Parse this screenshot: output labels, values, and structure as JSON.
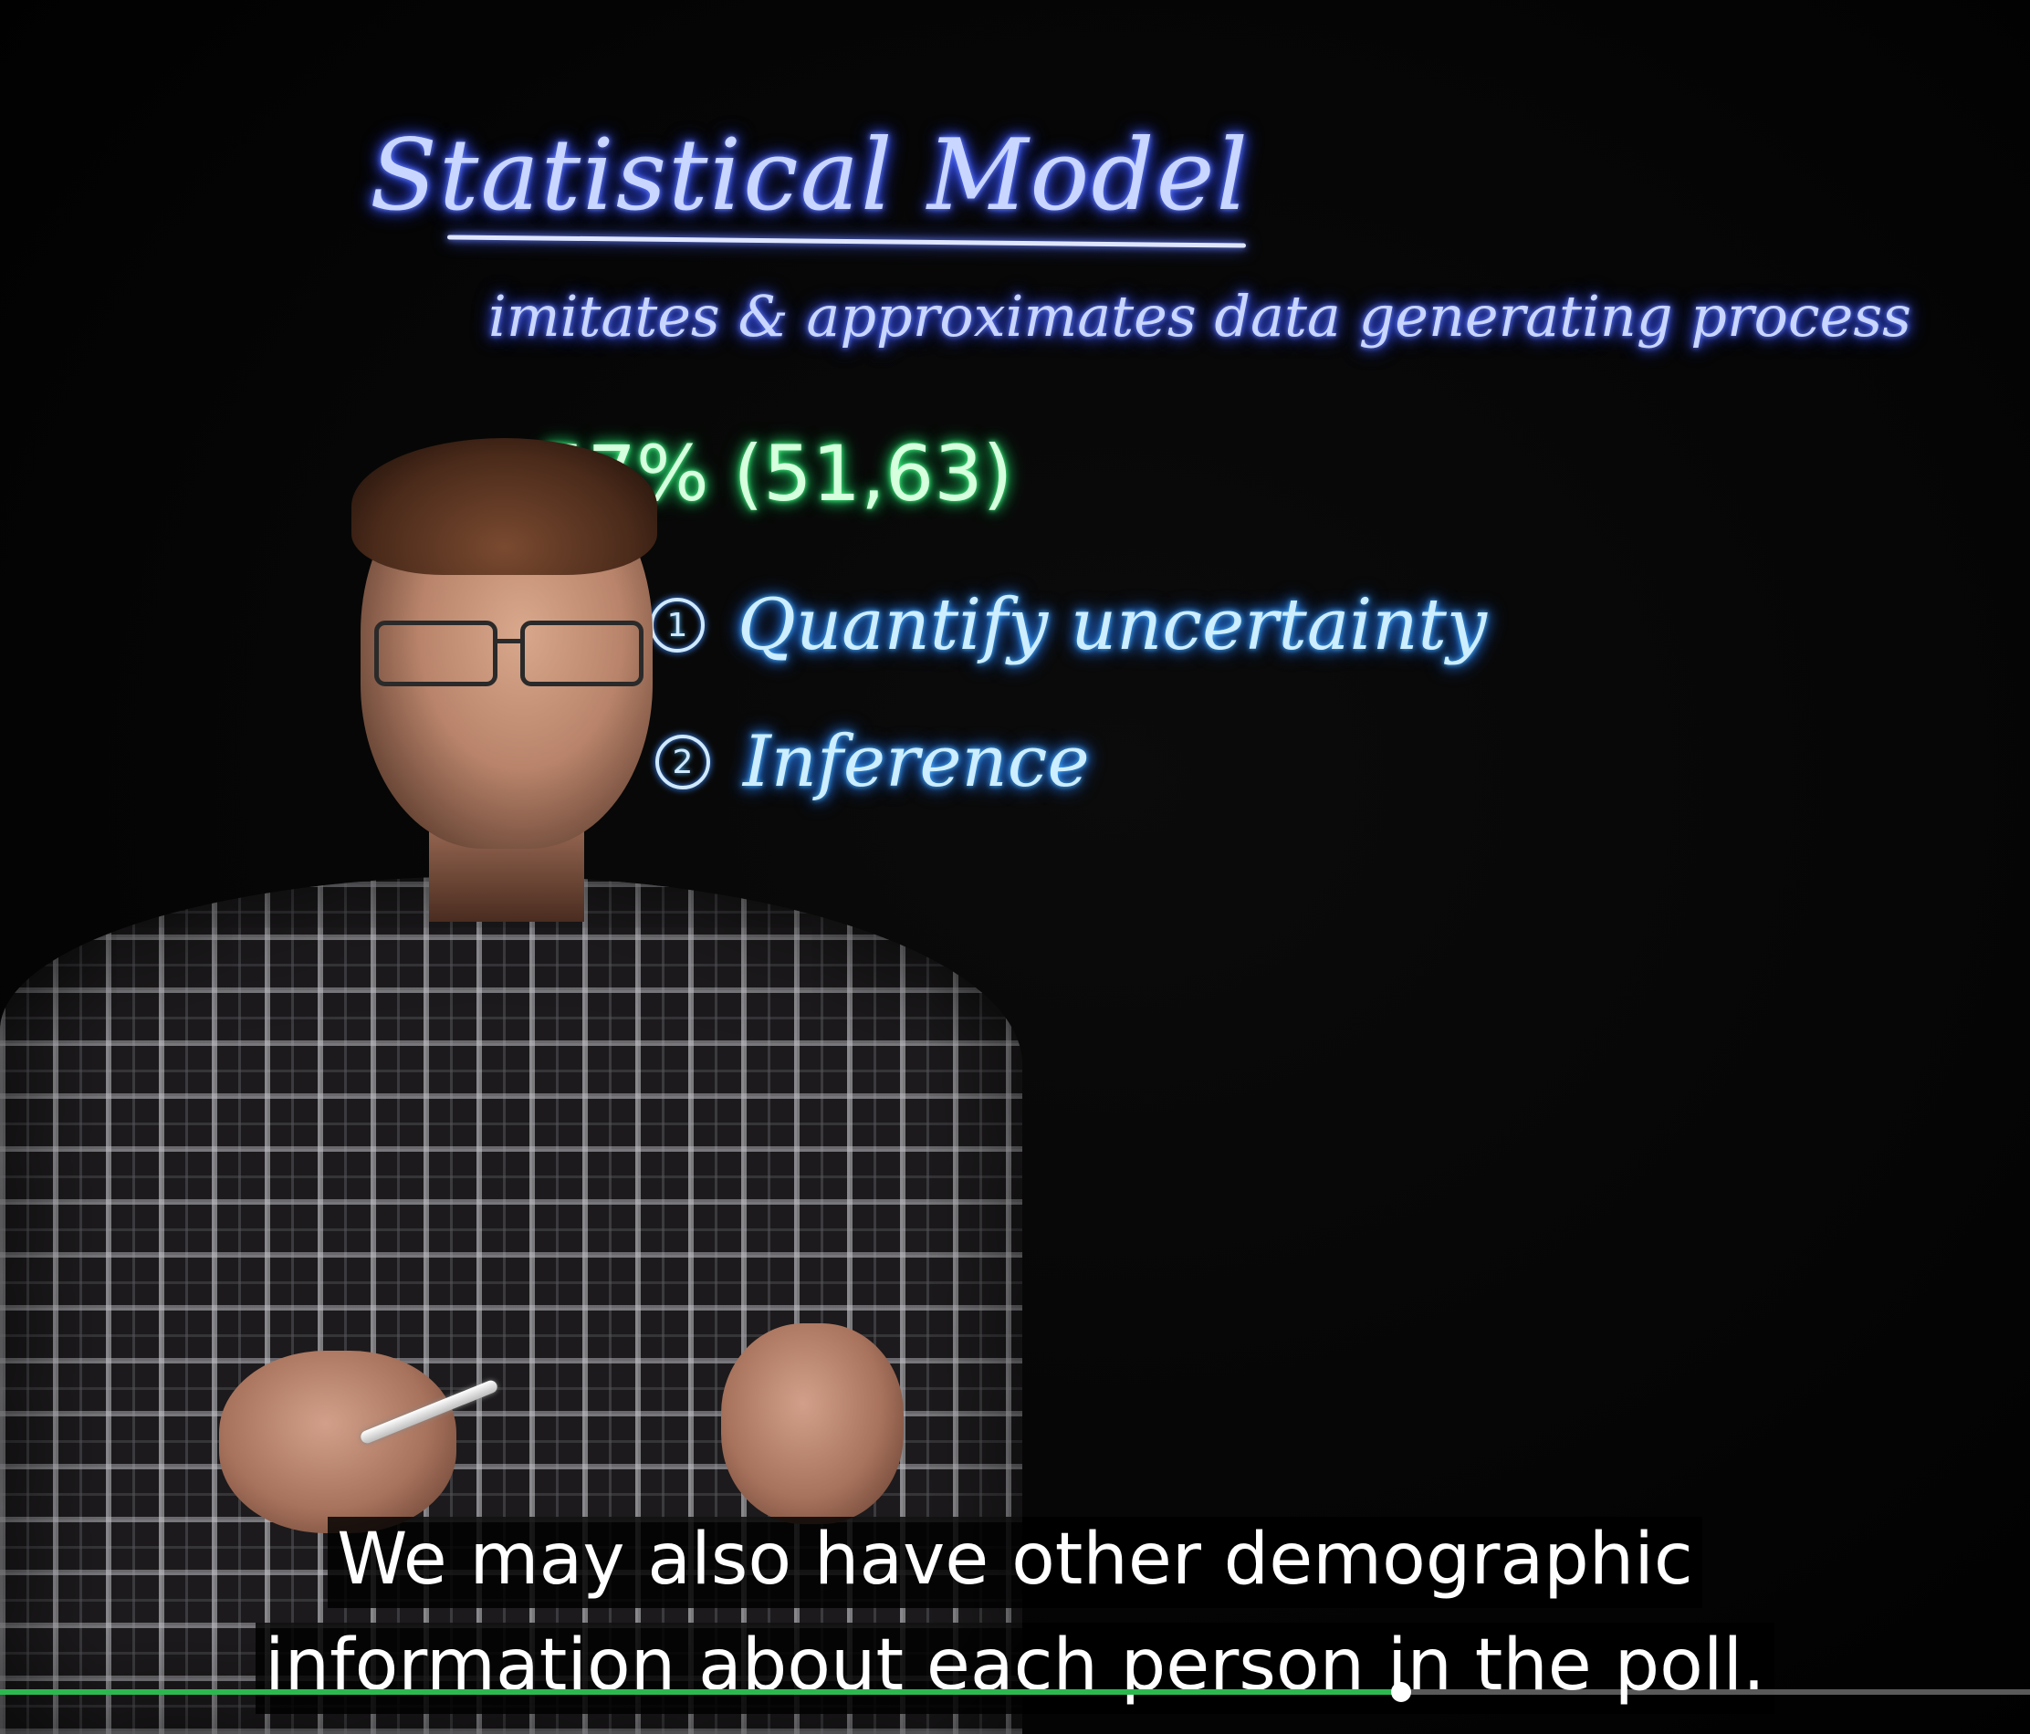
{
  "board": {
    "title": "Statistical Model",
    "subtitle": "imitates & approximates data generating process",
    "interval": "57% (51,63)",
    "list": [
      {
        "number": "1",
        "label": "Quantify uncertainty"
      },
      {
        "number": "2",
        "label": "Inference"
      }
    ]
  },
  "captions": {
    "line1": "We may also have other demographic",
    "line2": "information about each person in the poll."
  },
  "player": {
    "progress": 0.69
  },
  "colors": {
    "title_ink": "#c9d6ff",
    "list_ink": "#cdeeff",
    "interval_ink": "#d6ffdd",
    "progress_played": "#2db84f",
    "progress_track": "#bfbfbf",
    "caption_text": "#ffffff",
    "caption_bg": "#000000"
  }
}
